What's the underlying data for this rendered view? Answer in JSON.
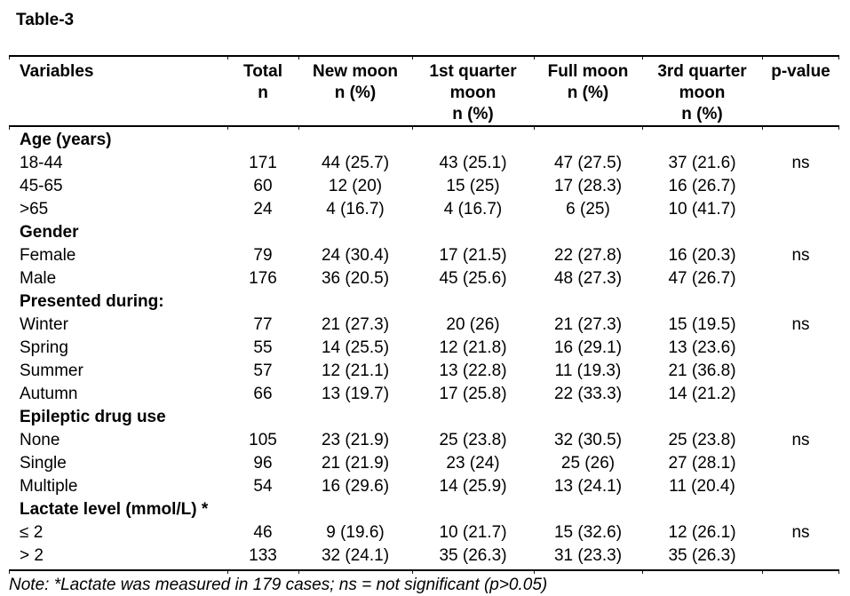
{
  "title": "Table-3",
  "table": {
    "headers": [
      "Variables",
      "Total\nn",
      "New moon\nn (%)",
      "1st quarter\nmoon\nn (%)",
      "Full moon\nn (%)",
      "3rd quarter\nmoon\nn (%)",
      "p-value"
    ],
    "sections": [
      {
        "label": "Age (years)",
        "rows": [
          [
            "18-44",
            "171",
            "44 (25.7)",
            "43 (25.1)",
            "47 (27.5)",
            "37 (21.6)",
            "ns"
          ],
          [
            "45-65",
            "60",
            "12 (20)",
            "15 (25)",
            "17 (28.3)",
            "16 (26.7)",
            ""
          ],
          [
            ">65",
            "24",
            "4 (16.7)",
            "4 (16.7)",
            "6 (25)",
            "10 (41.7)",
            ""
          ]
        ]
      },
      {
        "label": "Gender",
        "rows": [
          [
            "Female",
            "79",
            "24 (30.4)",
            "17 (21.5)",
            "22 (27.8)",
            "16 (20.3)",
            "ns"
          ],
          [
            "Male",
            "176",
            "36 (20.5)",
            "45 (25.6)",
            "48 (27.3)",
            "47 (26.7)",
            ""
          ]
        ]
      },
      {
        "label": "Presented during:",
        "rows": [
          [
            "Winter",
            "77",
            "21 (27.3)",
            "20 (26)",
            "21 (27.3)",
            "15 (19.5)",
            "ns"
          ],
          [
            "Spring",
            "55",
            "14 (25.5)",
            "12 (21.8)",
            "16 (29.1)",
            "13 (23.6)",
            ""
          ],
          [
            "Summer",
            "57",
            "12 (21.1)",
            "13 (22.8)",
            "11 (19.3)",
            "21 (36.8)",
            ""
          ],
          [
            "Autumn",
            "66",
            "13 (19.7)",
            "17 (25.8)",
            "22 (33.3)",
            "14 (21.2)",
            ""
          ]
        ]
      },
      {
        "label": "Epileptic drug use",
        "rows": [
          [
            "None",
            "105",
            "23 (21.9)",
            "25 (23.8)",
            "32 (30.5)",
            "25 (23.8)",
            "ns"
          ],
          [
            "Single",
            "96",
            "21 (21.9)",
            "23 (24)",
            "25 (26)",
            "27 (28.1)",
            ""
          ],
          [
            "Multiple",
            "54",
            "16 (29.6)",
            "14 (25.9)",
            "13 (24.1)",
            "11 (20.4)",
            ""
          ]
        ]
      },
      {
        "label": "Lactate level (mmol/L) *",
        "rows": [
          [
            "≤ 2",
            "46",
            "9 (19.6)",
            "10 (21.7)",
            "15 (32.6)",
            "12 (26.1)",
            "ns"
          ],
          [
            "> 2",
            "133",
            "32 (24.1)",
            "35 (26.3)",
            "31 (23.3)",
            "35 (26.3)",
            ""
          ]
        ]
      }
    ]
  },
  "note": "Note: *Lactate was measured in 179 cases; ns = not significant (p>0.05)"
}
